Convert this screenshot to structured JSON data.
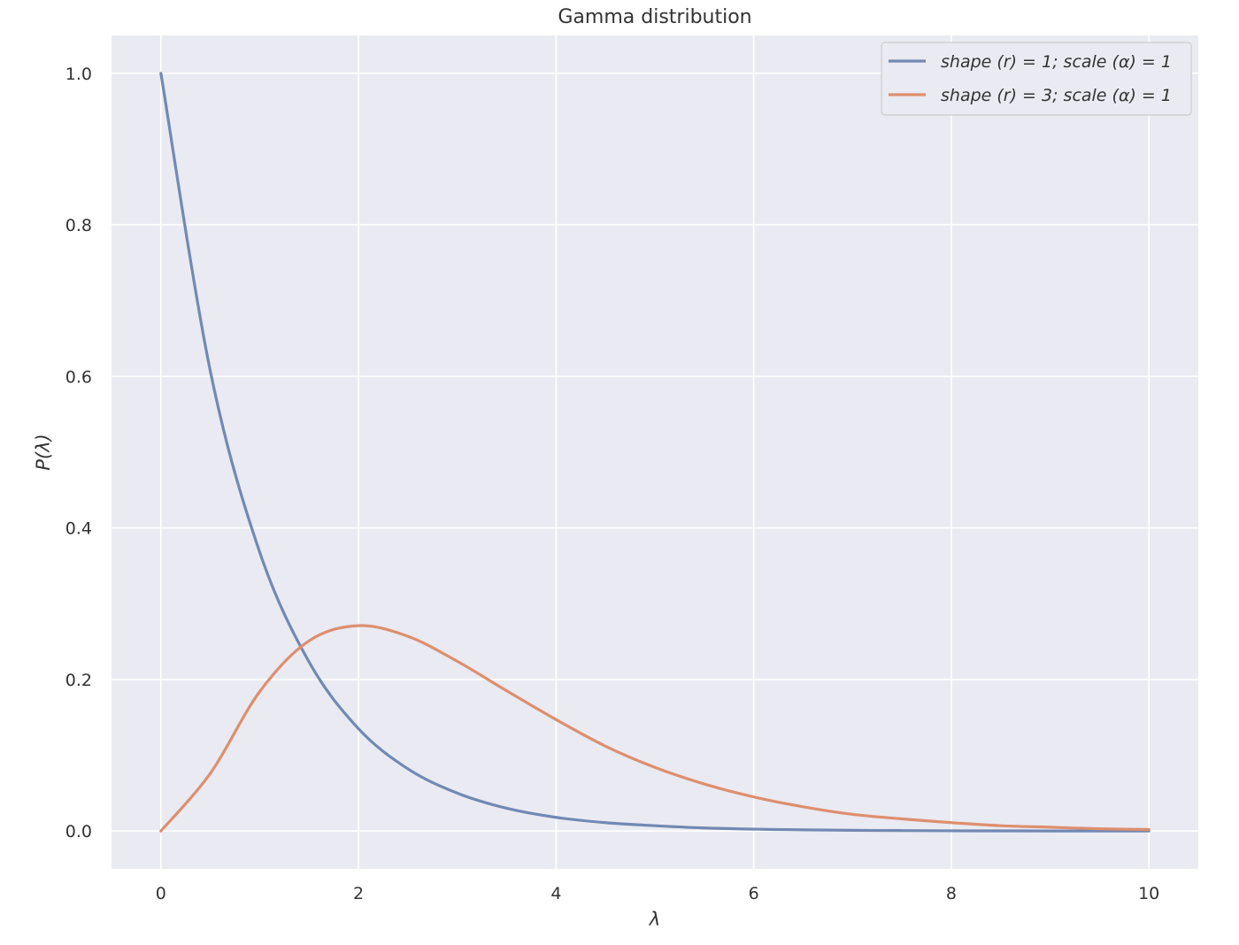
{
  "chart_data": {
    "type": "line",
    "title": "Gamma distribution",
    "xlabel": "λ",
    "ylabel": "P(λ)",
    "xlim": [
      -0.5,
      10.5
    ],
    "ylim": [
      -0.05,
      1.05
    ],
    "xticks": [
      0,
      2,
      4,
      6,
      8,
      10
    ],
    "xtick_labels": [
      "0",
      "2",
      "4",
      "6",
      "8",
      "10"
    ],
    "yticks": [
      0.0,
      0.2,
      0.4,
      0.6,
      0.8,
      1.0
    ],
    "ytick_labels": [
      "0.0",
      "0.2",
      "0.4",
      "0.6",
      "0.8",
      "1.0"
    ],
    "grid": true,
    "legend_position": "top-right",
    "background_color": "#eaeaf2",
    "grid_color": "#ffffff",
    "series": [
      {
        "name": "shape (r) = 1; scale (α) = 1",
        "color": "#7189b3",
        "x": [
          0,
          0.5,
          1,
          1.5,
          2,
          2.5,
          3,
          3.5,
          4,
          4.5,
          5,
          5.5,
          6,
          6.5,
          7,
          7.5,
          8,
          8.5,
          9,
          9.5,
          10
        ],
        "y": [
          1.0,
          0.607,
          0.368,
          0.223,
          0.135,
          0.082,
          0.05,
          0.03,
          0.018,
          0.011,
          0.007,
          0.004,
          0.0025,
          0.0015,
          0.0009,
          0.0006,
          0.0003,
          0.0002,
          0.0001,
          0.0001,
          0.0
        ]
      },
      {
        "name": "shape (r) = 3; scale (α) = 1",
        "color": "#dd8f6e",
        "x": [
          0,
          0.5,
          1,
          1.5,
          2,
          2.5,
          3,
          3.5,
          4,
          4.5,
          5,
          5.5,
          6,
          6.5,
          7,
          7.5,
          8,
          8.5,
          9,
          9.5,
          10
        ],
        "y": [
          0.0,
          0.076,
          0.184,
          0.251,
          0.271,
          0.257,
          0.224,
          0.185,
          0.147,
          0.112,
          0.084,
          0.062,
          0.045,
          0.032,
          0.022,
          0.016,
          0.011,
          0.007,
          0.005,
          0.003,
          0.002
        ]
      }
    ]
  }
}
